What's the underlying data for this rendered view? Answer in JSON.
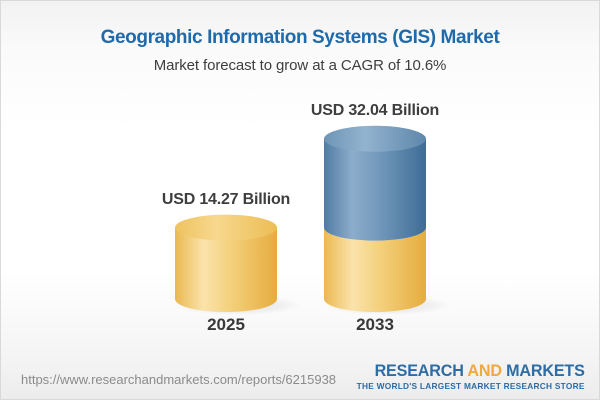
{
  "header": {
    "title": "Geographic Information Systems (GIS) Market",
    "subtitle": "Market forecast to grow at a CAGR of 10.6%"
  },
  "chart_data": {
    "type": "bar",
    "subtype": "3d-cylinder",
    "categories": [
      "2025",
      "2033"
    ],
    "values": [
      14.27,
      32.04
    ],
    "value_labels": [
      "USD 14.27 Billion",
      "USD 32.04 Billion"
    ],
    "unit": "USD Billion",
    "cagr_pct": 10.6,
    "legend_position": "none",
    "grid": false,
    "colors": {
      "cylinder_2025": "#f0c667",
      "cylinder_2033_upper": "#6f96b6",
      "cylinder_2033_lower": "#f0c667"
    },
    "notes": "2033 cylinder lower segment (equal in height to the 2025 value) is yellow; growth portion above it is blue"
  },
  "footer": {
    "url": "https://www.researchandmarkets.com/reports/6215938",
    "logo": {
      "word1": "RESEARCH",
      "word2": "AND",
      "word3": "MARKETS",
      "tagline": "THE WORLD'S LARGEST MARKET RESEARCH STORE",
      "blue": "#2d6ca4",
      "orange": "#f0a93a"
    }
  }
}
